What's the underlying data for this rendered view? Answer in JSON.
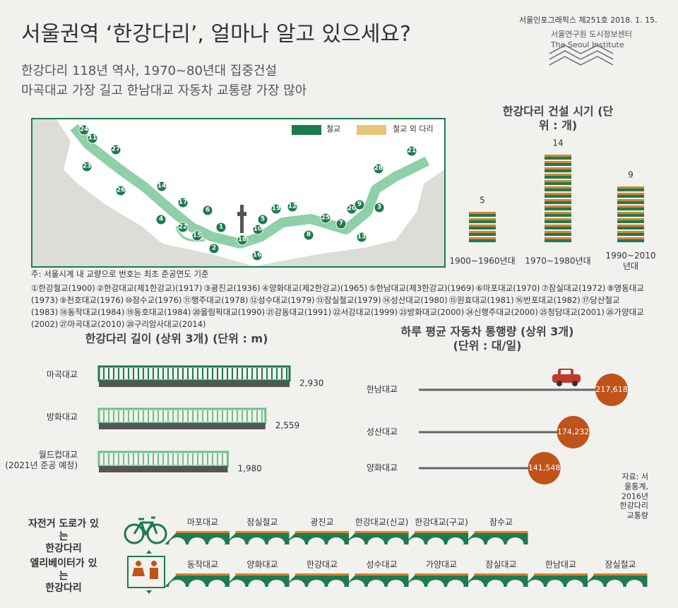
{
  "header": {
    "title": "서울권역 ‘한강다리’, 얼마나 알고 있으세요?",
    "subtitle": [
      "한강다리 118년 역사, 1970~80년대 집중건설",
      "마곡대교 가장 길고 한남대교 자동차 교통량 가장 많아"
    ],
    "issue": "서울인포그래픽스 제251호 2018. 1. 15.",
    "org": "서울연구원 도시정보센터",
    "org_en": "The Seoul Institute"
  },
  "map": {
    "legend": [
      "철교",
      "철교 외 다리"
    ],
    "markers": [
      "24",
      "11",
      "23",
      "27",
      "26",
      "14",
      "4",
      "17",
      "22",
      "15",
      "6",
      "1",
      "2",
      "18",
      "16",
      "10",
      "5",
      "19",
      "12",
      "8",
      "25",
      "7",
      "13",
      "20",
      "9",
      "3",
      "28",
      "21"
    ],
    "note": "주: 서울시계 내 교량으로 번호는 최초 준공연도 기준",
    "bridges": [
      "①한강철교(1900)",
      "②한강대교(제1한강교)(1917)",
      "③광진교(1936)",
      "④양화대교(제2한강교)(1965)",
      "⑤한남대교(제3한강교)(1969)",
      "⑥마포대교(1970)",
      "⑦잠실대교(1972)",
      "⑧영동대교(1973)",
      "⑨천호대교(1976)",
      "⑩잠수교(1976)",
      "⑪행주대교(1978)",
      "⑫성수대교(1979)",
      "⑬잠실철교(1979)",
      "⑭성산대교(1980)",
      "⑮원효대교(1981)",
      "⑯반포대교(1982)",
      "⑰당산철교(1983)",
      "⑱동작대교(1984)",
      "⑲동호대교(1984)",
      "⑳올림픽대교(1990)",
      "㉑강동대교(1991)",
      "㉒서강대교(1999)",
      "㉓방화대교(2000)",
      "㉔신행주대교(2000)",
      "㉕청담대교(2001)",
      "㉖가양대교(2002)",
      "㉗마곡대교(2010)",
      "㉘구리암사대교(2014)"
    ]
  },
  "chart_data": [
    {
      "type": "stack",
      "title": "한강다리 건설 시기 (단위 : 개)",
      "categories": [
        "1900~1960년대",
        "1970~1980년대",
        "1990~2010년대"
      ],
      "values": [
        5,
        14,
        9
      ],
      "color": "#1e7a4f"
    },
    {
      "type": "hbar",
      "title": "한강다리 길이 (상위 3개) (단위 : m)",
      "categories": [
        "마곡대교",
        "방화대교",
        "월드컵대교\n(2021년 준공 예정)"
      ],
      "values": [
        2930,
        2559,
        1980
      ],
      "value_labels": [
        "2,930",
        "2,559",
        "1,980"
      ],
      "colors": [
        "#1e7a4f",
        "#6fbf8a",
        "#6fbf8a"
      ]
    },
    {
      "type": "lollipop",
      "title": "하루 평균 자동차 통행량 (상위 3개) (단위 : 대/일)",
      "categories": [
        "한남대교",
        "성산대교",
        "양화대교"
      ],
      "values": [
        217618,
        174232,
        141548
      ],
      "value_labels": [
        "217,618",
        "174,232",
        "141,548"
      ],
      "color": "#c0531a",
      "source": "자료: 서울통계, 2016년 한강다리 교통량"
    }
  ],
  "bike": {
    "label": "자전거 도로가 있는\n한강다리",
    "bridges": [
      "마포대교",
      "잠실철교",
      "광진교",
      "한강대교(신교)",
      "한강대교(구교)",
      "잠수교"
    ]
  },
  "elevator": {
    "label": "엘리베이터가 있는\n한강다리",
    "bridges": [
      "동작대교",
      "양화대교",
      "한강대교",
      "성수대교",
      "가양대교",
      "잠실대교",
      "한남대교",
      "잠실철교"
    ]
  }
}
